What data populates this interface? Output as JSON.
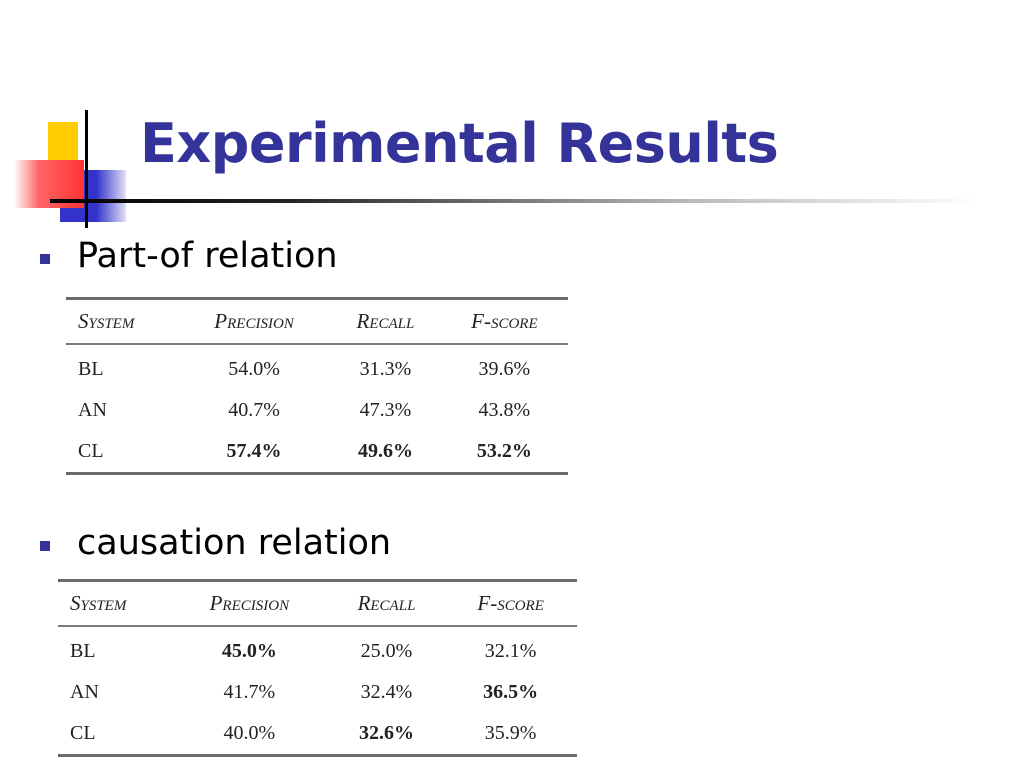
{
  "slide": {
    "title": "Experimental Results",
    "colors": {
      "title": "#333399",
      "bullet": "#333399",
      "deco_yellow": "#ffcc00",
      "deco_blue": "#3333cc",
      "deco_red": "#ff3333"
    }
  },
  "sections": [
    {
      "bullet": "Part-of relation",
      "table": {
        "headers": [
          "System",
          "Precision",
          "Recall",
          "F-score"
        ],
        "rows": [
          {
            "cells": [
              "BL",
              "54.0%",
              "31.3%",
              "39.6%"
            ],
            "bold": [
              false,
              false,
              false,
              false
            ]
          },
          {
            "cells": [
              "AN",
              "40.7%",
              "47.3%",
              "43.8%"
            ],
            "bold": [
              false,
              false,
              false,
              false
            ]
          },
          {
            "cells": [
              "CL",
              "57.4%",
              "49.6%",
              "53.2%"
            ],
            "bold": [
              false,
              true,
              true,
              true
            ]
          }
        ]
      }
    },
    {
      "bullet": "causation relation",
      "table": {
        "headers": [
          "System",
          "Precision",
          "Recall",
          "F-score"
        ],
        "rows": [
          {
            "cells": [
              "BL",
              "45.0%",
              "25.0%",
              "32.1%"
            ],
            "bold": [
              false,
              true,
              false,
              false
            ]
          },
          {
            "cells": [
              "AN",
              "41.7%",
              "32.4%",
              "36.5%"
            ],
            "bold": [
              false,
              false,
              false,
              true
            ]
          },
          {
            "cells": [
              "CL",
              "40.0%",
              "32.6%",
              "35.9%"
            ],
            "bold": [
              false,
              false,
              true,
              false
            ]
          }
        ]
      }
    }
  ]
}
